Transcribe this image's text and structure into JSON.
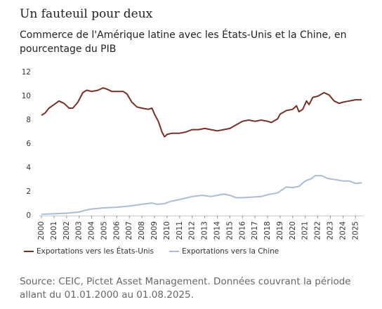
{
  "chart_data": {
    "type": "line",
    "title": "Un fauteuil pour deux",
    "subtitle": "Commerce de l'Amérique latine avec les États-Unis et la Chine, en pourcentage du PIB",
    "source": "Source: CEIC, Pictet Asset Management. Données couvrant la période allant du 01.01.2000 au 01.08.2025.",
    "xlim": [
      2000,
      2025.6
    ],
    "xticks": [
      2000,
      2001,
      2002,
      2003,
      2004,
      2005,
      2006,
      2007,
      2008,
      2009,
      2010,
      2011,
      2012,
      2013,
      2014,
      2015,
      2016,
      2017,
      2018,
      2019,
      2020,
      2021,
      2022,
      2023,
      2024,
      2025
    ],
    "ylim": [
      0,
      12
    ],
    "yticks": [
      0,
      2,
      4,
      6,
      8,
      10,
      12
    ],
    "legend": "bottom-left",
    "series": [
      {
        "name": "Exportations vers les États-Unis",
        "color": "#7b2e22",
        "x": [
          2000.0,
          2000.3,
          2000.6,
          2001.0,
          2001.4,
          2001.8,
          2002.2,
          2002.5,
          2002.9,
          2003.3,
          2003.6,
          2004.0,
          2004.5,
          2004.9,
          2005.2,
          2005.6,
          2006.0,
          2006.5,
          2006.8,
          2007.2,
          2007.6,
          2008.0,
          2008.5,
          2008.8,
          2009.0,
          2009.3,
          2009.6,
          2009.8,
          2010.0,
          2010.4,
          2011.0,
          2011.5,
          2012.0,
          2012.5,
          2013.0,
          2013.5,
          2014.0,
          2014.5,
          2015.0,
          2015.5,
          2016.0,
          2016.5,
          2017.0,
          2017.5,
          2018.0,
          2018.3,
          2018.8,
          2019.0,
          2019.5,
          2020.0,
          2020.3,
          2020.5,
          2020.8,
          2021.1,
          2021.3,
          2021.6,
          2022.0,
          2022.5,
          2022.9,
          2023.3,
          2023.7,
          2024.0,
          2024.5,
          2025.0,
          2025.5
        ],
        "values": [
          8.4,
          8.6,
          9.0,
          9.3,
          9.6,
          9.4,
          9.0,
          9.0,
          9.5,
          10.3,
          10.5,
          10.4,
          10.5,
          10.7,
          10.6,
          10.4,
          10.4,
          10.4,
          10.2,
          9.5,
          9.1,
          9.0,
          8.9,
          9.0,
          8.5,
          7.9,
          7.0,
          6.6,
          6.8,
          6.9,
          6.9,
          7.0,
          7.2,
          7.2,
          7.3,
          7.2,
          7.1,
          7.2,
          7.3,
          7.6,
          7.9,
          8.0,
          7.9,
          8.0,
          7.9,
          7.8,
          8.1,
          8.5,
          8.8,
          8.9,
          9.2,
          8.7,
          8.9,
          9.6,
          9.3,
          9.9,
          10.0,
          10.3,
          10.1,
          9.6,
          9.4,
          9.5,
          9.6,
          9.7,
          9.7
        ]
      },
      {
        "name": "Exportations vers la Chine",
        "color": "#a9bed6",
        "x": [
          2000,
          2001,
          2002,
          2003,
          2003.5,
          2004,
          2005,
          2006,
          2007,
          2008,
          2008.8,
          2009.2,
          2009.8,
          2010.3,
          2011,
          2012,
          2012.8,
          2013.5,
          2014,
          2014.5,
          2015,
          2015.5,
          2016,
          2016.8,
          2017.5,
          2018,
          2018.8,
          2019.5,
          2020,
          2020.5,
          2021,
          2021.5,
          2021.8,
          2022.3,
          2022.8,
          2023.5,
          2024,
          2024.5,
          2025,
          2025.5
        ],
        "values": [
          0.1,
          0.15,
          0.2,
          0.3,
          0.45,
          0.55,
          0.65,
          0.7,
          0.8,
          0.95,
          1.05,
          0.95,
          1.0,
          1.2,
          1.35,
          1.6,
          1.7,
          1.6,
          1.7,
          1.8,
          1.7,
          1.5,
          1.5,
          1.55,
          1.6,
          1.75,
          1.9,
          2.4,
          2.35,
          2.45,
          2.9,
          3.1,
          3.35,
          3.35,
          3.1,
          3.0,
          2.9,
          2.9,
          2.7,
          2.75
        ]
      }
    ]
  }
}
